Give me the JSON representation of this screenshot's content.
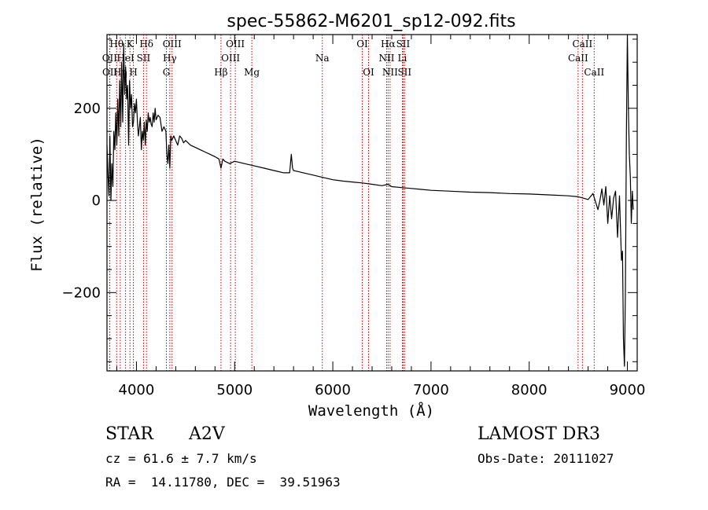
{
  "chart_data": {
    "type": "line",
    "title": "spec-55862-M6201_sp12-092.fits",
    "xlabel": "Wavelength (Å)",
    "ylabel": "Flux (relative)",
    "xlim": [
      3700,
      9100
    ],
    "ylim": [
      -370,
      360
    ],
    "x_ticks": [
      4000,
      5000,
      6000,
      7000,
      8000,
      9000
    ],
    "y_ticks": [
      -200,
      0,
      200
    ],
    "series": [
      {
        "name": "flux",
        "x": [
          3700,
          3710,
          3720,
          3730,
          3740,
          3750,
          3760,
          3770,
          3780,
          3790,
          3800,
          3810,
          3820,
          3830,
          3840,
          3850,
          3860,
          3870,
          3880,
          3890,
          3900,
          3910,
          3920,
          3930,
          3940,
          3950,
          3960,
          3970,
          3980,
          3990,
          4000,
          4010,
          4020,
          4030,
          4040,
          4050,
          4060,
          4070,
          4080,
          4090,
          4100,
          4110,
          4120,
          4130,
          4140,
          4150,
          4160,
          4170,
          4180,
          4190,
          4200,
          4220,
          4240,
          4260,
          4280,
          4300,
          4310,
          4320,
          4330,
          4340,
          4350,
          4360,
          4380,
          4400,
          4420,
          4440,
          4460,
          4480,
          4500,
          4550,
          4600,
          4650,
          4700,
          4750,
          4800,
          4840,
          4861,
          4880,
          4900,
          4950,
          5000,
          5100,
          5200,
          5300,
          5400,
          5500,
          5560,
          5577,
          5590,
          5600,
          5700,
          5800,
          5900,
          6000,
          6100,
          6200,
          6300,
          6400,
          6500,
          6563,
          6600,
          6700,
          6800,
          6900,
          7000,
          7200,
          7400,
          7600,
          7800,
          8000,
          8200,
          8400,
          8500,
          8550,
          8600,
          8650,
          8700,
          8720,
          8740,
          8760,
          8780,
          8800,
          8820,
          8840,
          8860,
          8880,
          8900,
          8920,
          8940,
          8950,
          8960,
          8970,
          8980,
          8990,
          9000,
          9010,
          9020,
          9030,
          9040,
          9050,
          9060
        ],
        "y": [
          120,
          60,
          10,
          140,
          0,
          80,
          30,
          150,
          110,
          190,
          120,
          220,
          140,
          260,
          160,
          300,
          170,
          340,
          230,
          290,
          220,
          250,
          120,
          260,
          200,
          230,
          160,
          170,
          210,
          190,
          220,
          170,
          140,
          160,
          180,
          110,
          150,
          130,
          170,
          120,
          175,
          150,
          190,
          170,
          180,
          165,
          160,
          190,
          170,
          200,
          175,
          185,
          180,
          150,
          160,
          150,
          100,
          80,
          120,
          70,
          140,
          130,
          140,
          130,
          120,
          140,
          135,
          125,
          130,
          120,
          115,
          110,
          105,
          100,
          95,
          90,
          70,
          90,
          85,
          80,
          85,
          80,
          75,
          70,
          65,
          60,
          60,
          100,
          70,
          65,
          60,
          55,
          50,
          45,
          42,
          40,
          38,
          35,
          32,
          35,
          30,
          28,
          26,
          24,
          22,
          20,
          18,
          17,
          15,
          14,
          12,
          10,
          8,
          5,
          2,
          15,
          -20,
          0,
          25,
          -10,
          30,
          -50,
          10,
          -40,
          5,
          20,
          -80,
          10,
          -130,
          -110,
          -300,
          -360,
          -200,
          150,
          360,
          200,
          100,
          50,
          -50,
          20,
          -20
        ]
      }
    ],
    "spectral_lines": [
      {
        "label": "Hθ",
        "wl": 3798,
        "row": 1
      },
      {
        "label": "OII",
        "wl": 3727,
        "row": 2
      },
      {
        "label": "OII",
        "wl": 3729,
        "row": 3
      },
      {
        "label": "Hη",
        "wl": 3835,
        "row": 3
      },
      {
        "label": "HeI",
        "wl": 3889,
        "row": 2
      },
      {
        "label": "K",
        "wl": 3934,
        "row": 1
      },
      {
        "label": "H",
        "wl": 3969,
        "row": 3
      },
      {
        "label": "SII",
        "wl": 4072,
        "row": 2
      },
      {
        "label": "Hδ",
        "wl": 4102,
        "row": 1
      },
      {
        "label": "OIII",
        "wl": 4363,
        "row": 1
      },
      {
        "label": "Hγ",
        "wl": 4340,
        "row": 2
      },
      {
        "label": "G",
        "wl": 4305,
        "row": 3
      },
      {
        "label": "Hβ",
        "wl": 4861,
        "row": 3
      },
      {
        "label": "OIII",
        "wl": 5007,
        "row": 1
      },
      {
        "label": "OIII",
        "wl": 4959,
        "row": 2
      },
      {
        "label": "Mg",
        "wl": 5175,
        "row": 3
      },
      {
        "label": "Na",
        "wl": 5893,
        "row": 2
      },
      {
        "label": "OI",
        "wl": 6300,
        "row": 1
      },
      {
        "label": "OI",
        "wl": 6364,
        "row": 3
      },
      {
        "label": "Hα",
        "wl": 6563,
        "row": 1
      },
      {
        "label": "NII",
        "wl": 6548,
        "row": 2
      },
      {
        "label": "NII",
        "wl": 6583,
        "row": 3
      },
      {
        "label": "SII",
        "wl": 6716,
        "row": 1
      },
      {
        "label": "Li",
        "wl": 6708,
        "row": 2
      },
      {
        "label": "SII",
        "wl": 6731,
        "row": 3
      },
      {
        "label": "CaII",
        "wl": 8542,
        "row": 1
      },
      {
        "label": "CaII",
        "wl": 8498,
        "row": 2
      },
      {
        "label": "CaII",
        "wl": 8662,
        "row": 3
      }
    ],
    "colors": {
      "spectrum": "#000000",
      "lines": "#cc0000",
      "axes": "#000000"
    }
  },
  "info": {
    "class": "STAR",
    "subclass": "A2V",
    "survey": "LAMOST DR3",
    "cz": "cz = 61.6 ± 7.7 km/s",
    "obs_date": "Obs-Date: 20111027",
    "radec": "RA =  14.11780, DEC =  39.51963"
  }
}
